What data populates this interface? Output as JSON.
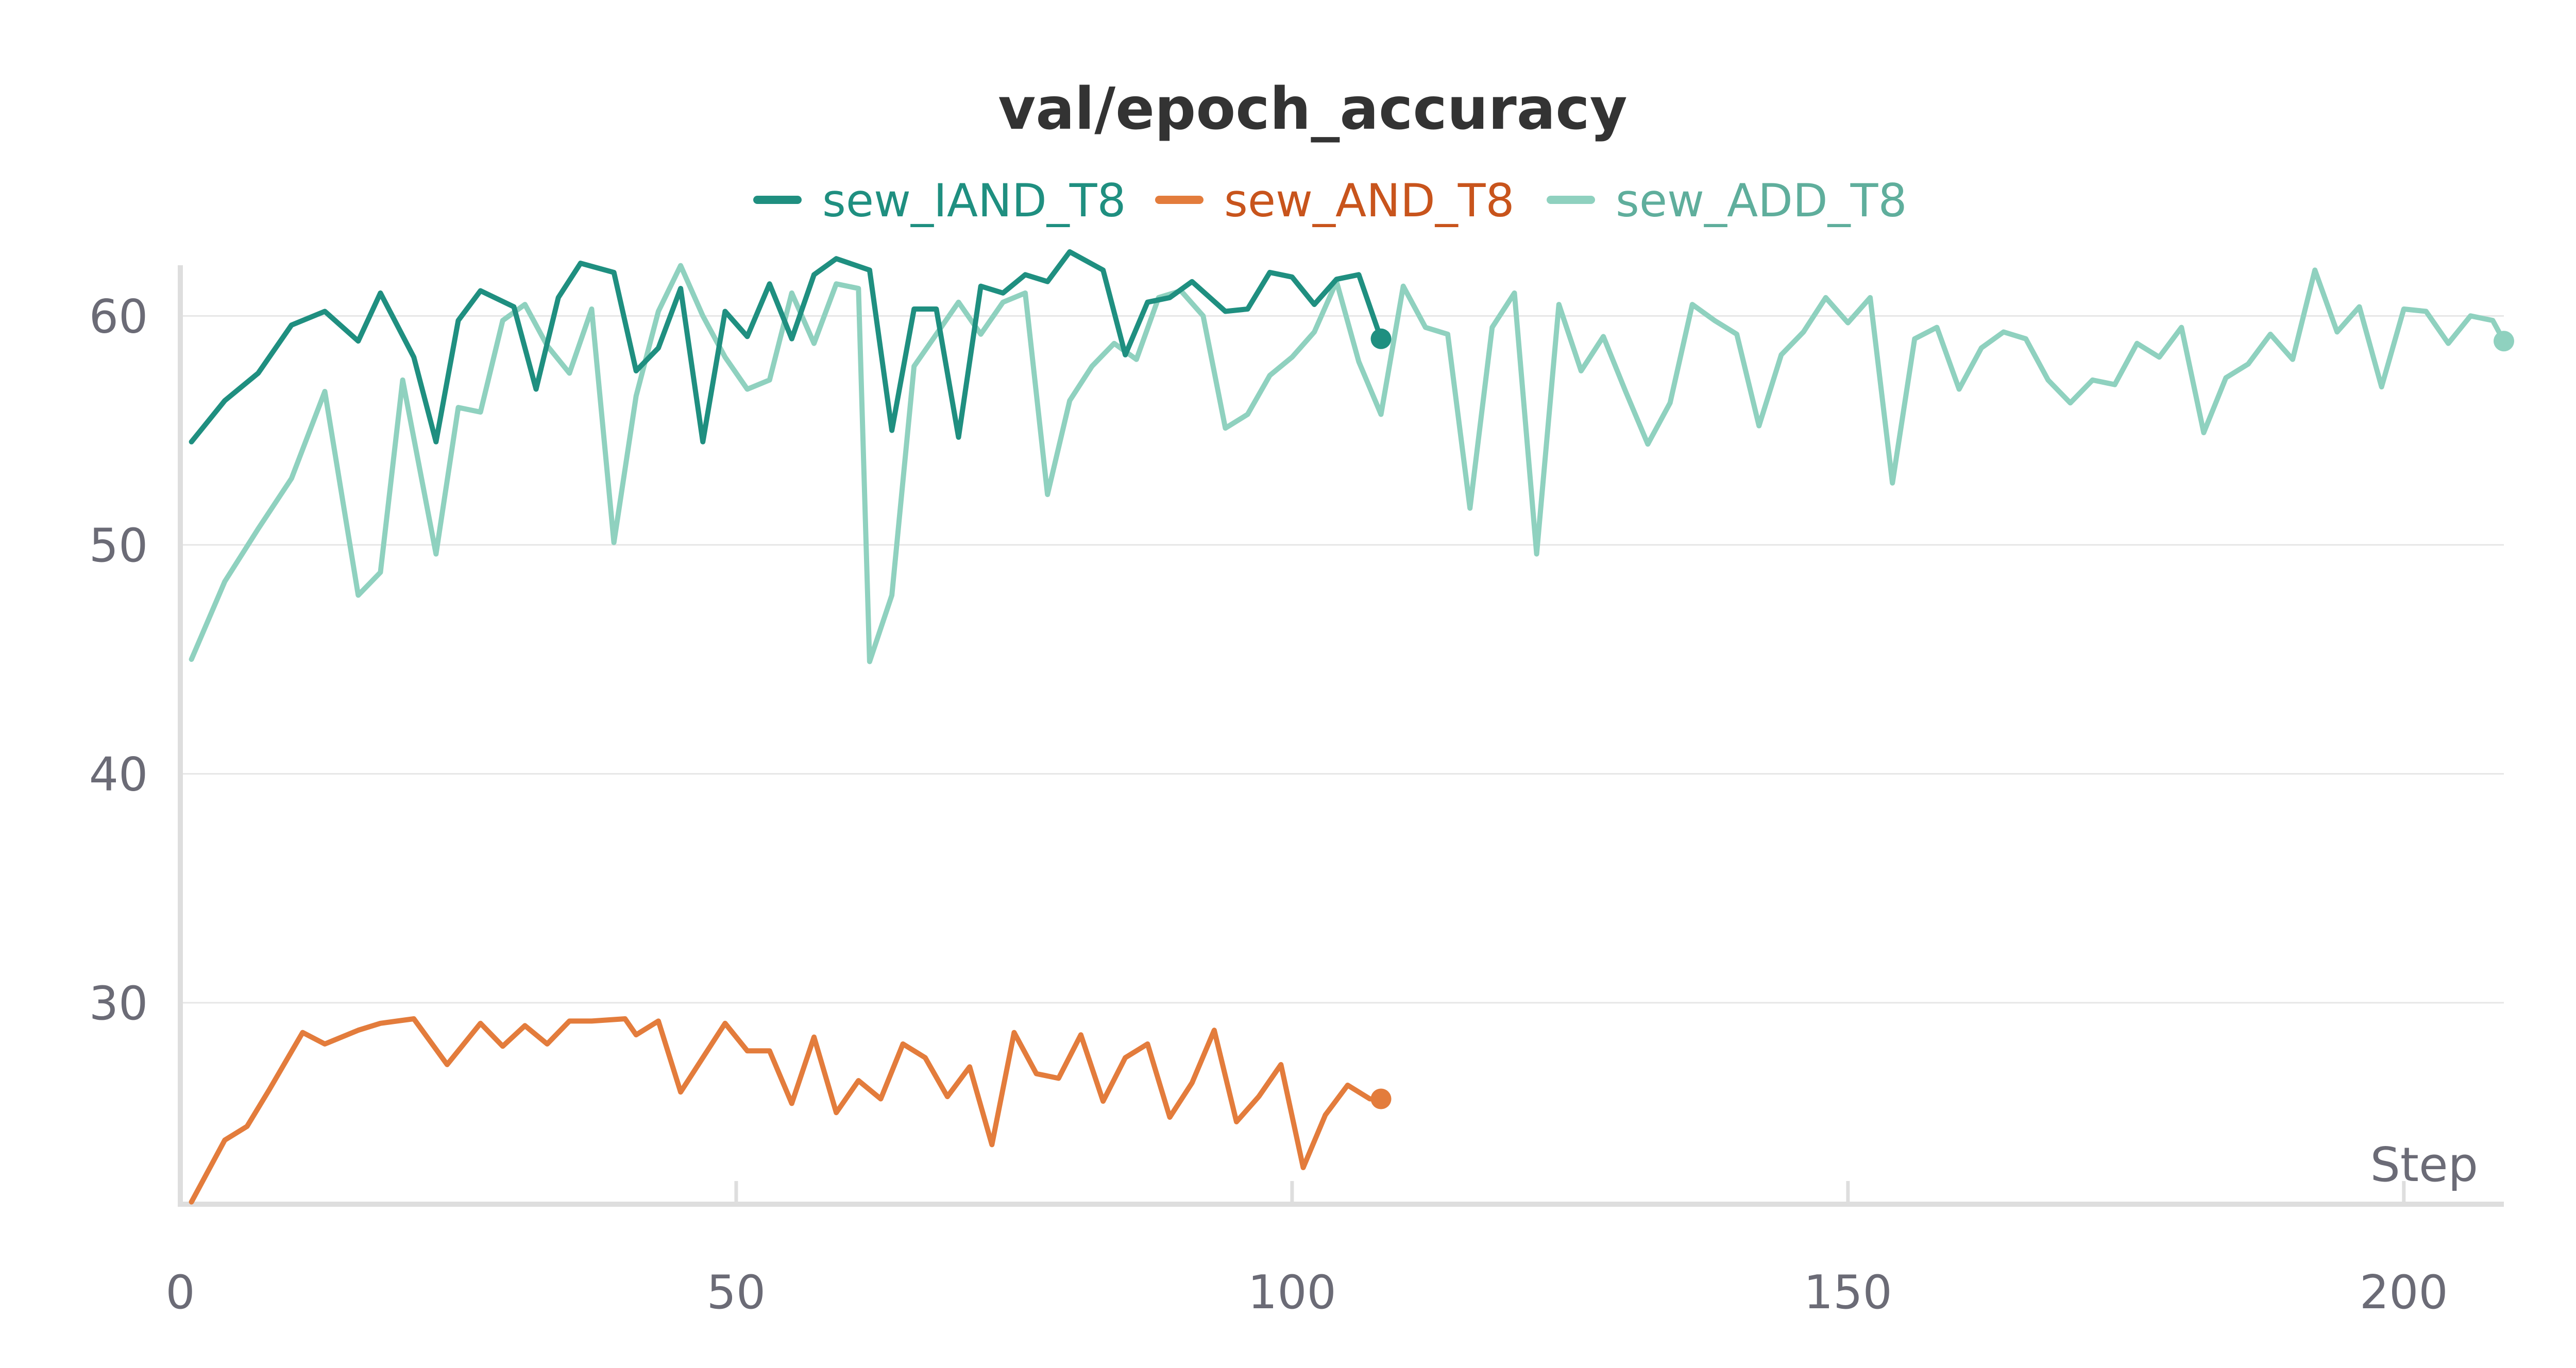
{
  "chart_data": {
    "type": "line",
    "title": "val/epoch_accuracy",
    "xlabel": "Step",
    "ylabel": "",
    "xlim": [
      0,
      209
    ],
    "ylim": [
      21.2,
      63
    ],
    "x_ticks": [
      0,
      50,
      100,
      150,
      200
    ],
    "y_ticks": [
      30,
      40,
      50,
      60
    ],
    "grid": true,
    "legend_position": "top-center",
    "series": [
      {
        "name": "sew_IAND_T8",
        "color": "#1f8f80",
        "x": [
          1,
          4,
          7,
          10,
          13,
          16,
          18,
          21,
          23,
          25,
          27,
          30,
          32,
          34,
          36,
          39,
          41,
          43,
          45,
          47,
          49,
          51,
          53,
          55,
          57,
          59,
          62,
          64,
          66,
          68,
          70,
          72,
          74,
          76,
          78,
          80,
          83,
          85,
          87,
          89,
          91,
          94,
          96,
          98,
          100,
          102,
          104,
          106,
          108
        ],
        "y": [
          54.5,
          56.3,
          57.5,
          59.6,
          60.2,
          58.9,
          61,
          58.2,
          54.5,
          59.8,
          61.1,
          60.4,
          56.8,
          60.8,
          62.3,
          61.9,
          57.6,
          58.6,
          61.2,
          54.5,
          60.2,
          59.1,
          61.4,
          59,
          61.8,
          62.5,
          62,
          55,
          60.3,
          60.3,
          54.7,
          61.3,
          61,
          61.8,
          61.5,
          62.8,
          62,
          58.3,
          60.6,
          60.8,
          61.5,
          60.2,
          60.3,
          61.9,
          61.7,
          60.5,
          61.6,
          61.8,
          59
        ]
      },
      {
        "name": "sew_AND_T8",
        "color": "#e37c3c",
        "x": [
          1,
          4,
          6,
          8,
          11,
          13,
          16,
          18,
          21,
          24,
          27,
          29,
          31,
          33,
          35,
          37,
          40,
          41,
          43,
          45,
          47,
          49,
          51,
          53,
          55,
          57,
          59,
          61,
          63,
          65,
          67,
          69,
          71,
          73,
          75,
          77,
          79,
          81,
          83,
          85,
          87,
          89,
          91,
          93,
          95,
          97,
          99,
          101,
          103,
          105,
          107,
          108
        ],
        "y": [
          21.3,
          24,
          24.6,
          26.2,
          28.7,
          28.2,
          28.8,
          29.1,
          29.3,
          27.3,
          29.1,
          28.1,
          29,
          28.2,
          29.2,
          29.2,
          29.3,
          28.6,
          29.2,
          26.1,
          27.6,
          29.1,
          27.9,
          27.9,
          25.6,
          28.5,
          25.2,
          26.6,
          25.8,
          28.2,
          27.6,
          25.9,
          27.2,
          23.8,
          28.7,
          26.9,
          26.7,
          28.6,
          25.7,
          27.6,
          28.2,
          25,
          26.5,
          28.8,
          24.8,
          25.9,
          27.3,
          22.8,
          25.1,
          26.4,
          25.8,
          25.8
        ]
      },
      {
        "name": "sew_ADD_T8",
        "color": "#8fd1bf",
        "x": [
          1,
          4,
          7,
          10,
          13,
          16,
          18,
          20,
          23,
          25,
          27,
          29,
          31,
          33,
          35,
          37,
          39,
          41,
          43,
          45,
          47,
          49,
          51,
          53,
          55,
          57,
          59,
          61,
          62,
          64,
          66,
          68,
          70,
          72,
          74,
          76,
          78,
          80,
          82,
          84,
          86,
          88,
          90,
          92,
          94,
          96,
          98,
          100,
          102,
          104,
          106,
          108,
          110,
          112,
          114,
          116,
          118,
          120,
          122,
          124,
          126,
          128,
          130,
          132,
          134,
          136,
          138,
          140,
          142,
          144,
          146,
          148,
          150,
          152,
          154,
          156,
          158,
          160,
          162,
          164,
          166,
          168,
          170,
          172,
          174,
          176,
          178,
          180,
          182,
          184,
          186,
          188,
          190,
          192,
          194,
          196,
          198,
          200,
          202,
          204,
          206,
          208,
          209
        ],
        "y": [
          45,
          48.4,
          50.7,
          52.9,
          56.7,
          47.8,
          48.8,
          57.2,
          49.6,
          56,
          55.8,
          59.8,
          60.5,
          58.7,
          57.5,
          60.3,
          50.1,
          56.5,
          60.2,
          62.2,
          60,
          58.2,
          56.8,
          57.2,
          61,
          58.8,
          61.4,
          61.2,
          44.9,
          47.8,
          57.8,
          59.2,
          60.6,
          59.2,
          60.6,
          61,
          52.2,
          56.3,
          57.8,
          58.8,
          58.1,
          60.8,
          61.1,
          60,
          55.1,
          55.7,
          57.4,
          58.2,
          59.3,
          61.5,
          58,
          55.7,
          61.3,
          59.5,
          59.2,
          51.6,
          59.5,
          61,
          49.6,
          60.5,
          57.6,
          59.1,
          56.7,
          54.4,
          56.2,
          60.5,
          59.8,
          59.2,
          55.2,
          58.3,
          59.3,
          60.8,
          59.7,
          60.8,
          52.7,
          59,
          59.5,
          56.8,
          58.6,
          59.3,
          59,
          57.2,
          56.2,
          57.2,
          57,
          58.8,
          58.2,
          59.5,
          54.9,
          57.3,
          57.9,
          59.2,
          58.1,
          62,
          59.3,
          60.4,
          56.9,
          60.3,
          60.2,
          58.8,
          60,
          59.8,
          58.9
        ]
      }
    ]
  }
}
